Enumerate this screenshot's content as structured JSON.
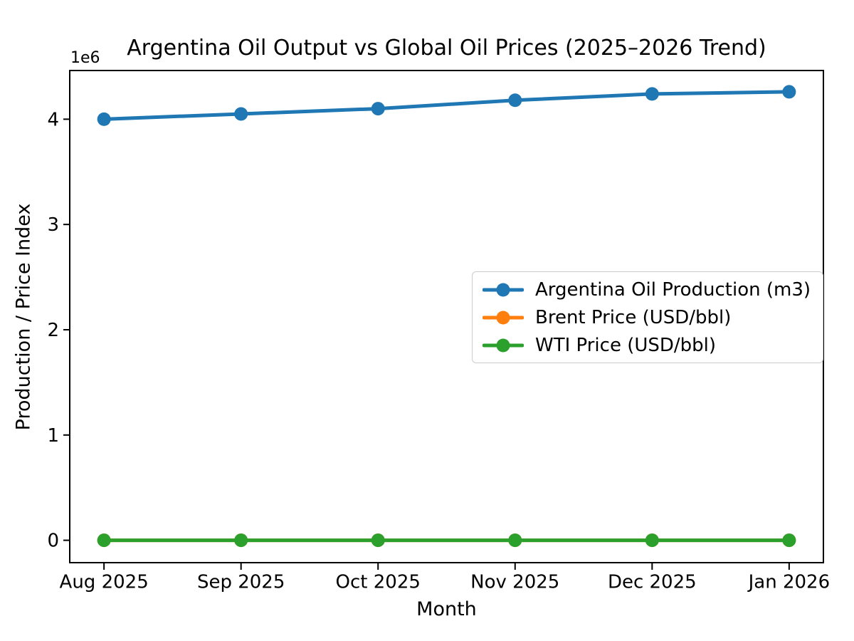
{
  "figure": {
    "background": "#ffffff",
    "axis_color": "#000000",
    "text_color": "#000000",
    "legend_border_color": "#cccccc"
  },
  "chart_data": {
    "type": "line",
    "title": "Argentina Oil Output vs Global Oil Prices (2025–2026 Trend)",
    "xlabel": "Month",
    "ylabel": "Production / Price Index",
    "y_axis_offset_label": "1e6",
    "categories": [
      "Aug 2025",
      "Sep 2025",
      "Oct 2025",
      "Nov 2025",
      "Dec 2025",
      "Jan 2026"
    ],
    "series": [
      {
        "name": "Argentina Oil Production (m3)",
        "color": "#1f77b4",
        "marker": "circle",
        "values": [
          4000000,
          4050000,
          4100000,
          4180000,
          4240000,
          4260000
        ]
      },
      {
        "name": "Brent Price (USD/bbl)",
        "color": "#ff7f0e",
        "marker": "circle",
        "values": [
          66,
          66,
          66,
          66,
          66,
          66
        ]
      },
      {
        "name": "WTI Price (USD/bbl)",
        "color": "#2ca02c",
        "marker": "circle",
        "values": [
          62,
          62,
          62,
          62,
          62,
          62
        ]
      }
    ],
    "yticks": {
      "values": [
        0,
        1000000,
        2000000,
        3000000,
        4000000
      ],
      "labels": [
        "0",
        "1",
        "2",
        "3",
        "4"
      ]
    },
    "ylim": [
      -212500,
      4462500
    ],
    "grid": false,
    "legend_position": "center-right",
    "notes": "Brent and WTI overlap at ~0 on the 1e6 scale; green (WTI) drawn over orange (Brent)."
  }
}
